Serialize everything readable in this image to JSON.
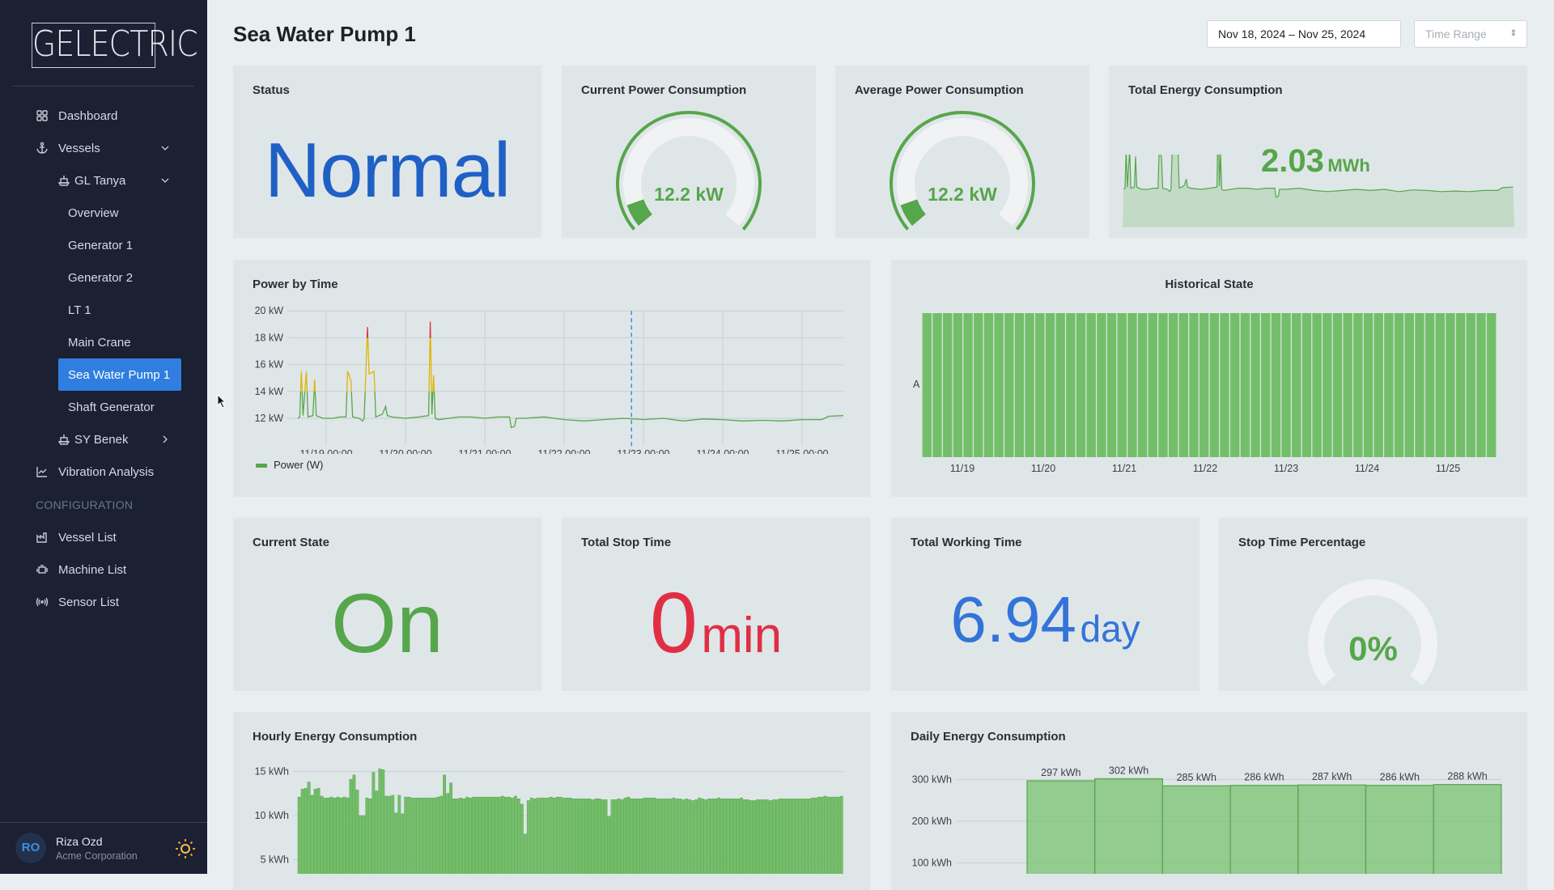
{
  "sidebar": {
    "logo": "GELECTRIC",
    "items": [
      {
        "label": "Dashboard",
        "icon": "dashboard-icon"
      },
      {
        "label": "Vessels",
        "icon": "anchor-icon"
      },
      {
        "label": "GL Tanya",
        "icon": "ship-icon"
      },
      {
        "label": "Overview"
      },
      {
        "label": "Generator 1"
      },
      {
        "label": "Generator 2"
      },
      {
        "label": "LT 1"
      },
      {
        "label": "Main Crane"
      },
      {
        "label": "Sea Water Pump 1",
        "active": true
      },
      {
        "label": "Shaft Generator"
      },
      {
        "label": "SY Benek",
        "icon": "ship-icon"
      },
      {
        "label": "Vibration Analysis",
        "icon": "line-chart-icon"
      }
    ],
    "section": "CONFIGURATION",
    "config_items": [
      {
        "label": "Vessel List",
        "icon": "factory-icon"
      },
      {
        "label": "Machine List",
        "icon": "engine-icon"
      },
      {
        "label": "Sensor List",
        "icon": "sensor-icon"
      }
    ],
    "user": {
      "initials": "RO",
      "name": "Riza Ozd",
      "org": "Acme Corporation"
    }
  },
  "header": {
    "title": "Sea Water Pump 1",
    "date_range": "Nov 18, 2024 – Nov 25, 2024",
    "time_range_placeholder": "Time Range"
  },
  "status": {
    "title": "Status",
    "value": "Normal",
    "color": "#1f60c4"
  },
  "current_power": {
    "title": "Current Power Consumption",
    "value": "12.2 kW",
    "fill_fraction": 0.08
  },
  "average_power": {
    "title": "Average Power Consumption",
    "value": "12.2 kW",
    "fill_fraction": 0.08
  },
  "total_energy": {
    "title": "Total Energy Consumption",
    "value": "2.03",
    "unit": "MWh"
  },
  "current_state": {
    "title": "Current State",
    "value": "On",
    "color": "#56a64b"
  },
  "total_stop": {
    "title": "Total Stop Time",
    "value": "0",
    "unit": "min",
    "color": "#e02f44"
  },
  "total_working": {
    "title": "Total Working Time",
    "value": "6.94",
    "unit": "day",
    "color": "#3274d9"
  },
  "stop_pct": {
    "title": "Stop Time Percentage",
    "value": "0%",
    "fill_fraction": 0
  },
  "chart_data": [
    {
      "id": "power",
      "type": "line",
      "title": "Power by Time",
      "legend": "Power (W)",
      "x_unit": "hours from 11/19 00:00",
      "xlim": [
        -9,
        157
      ],
      "ylim": [
        10,
        20
      ],
      "yticks": [
        {
          "v": 20,
          "l": "20 kW"
        },
        {
          "v": 18,
          "l": "18 kW"
        },
        {
          "v": 16,
          "l": "16 kW"
        },
        {
          "v": 14,
          "l": "14 kW"
        },
        {
          "v": 12,
          "l": "12 kW"
        }
      ],
      "xticks": [
        {
          "v": 0,
          "l": "11/19 00:00"
        },
        {
          "v": 24,
          "l": "11/20 00:00"
        },
        {
          "v": 48,
          "l": "11/21 00:00"
        },
        {
          "v": 72,
          "l": "11/22 00:00"
        },
        {
          "v": 96,
          "l": "11/23 00:00"
        },
        {
          "v": 120,
          "l": "11/24 00:00"
        },
        {
          "v": 144,
          "l": "11/25 00:00"
        }
      ],
      "thresholds": {
        "warn": 14,
        "crit": 18
      },
      "cursor_x": 92.4,
      "points": [
        [
          -8.6,
          12.0
        ],
        [
          -8,
          12.1
        ],
        [
          -7.5,
          15.5
        ],
        [
          -7,
          12.2
        ],
        [
          -6,
          15.5
        ],
        [
          -5.5,
          12.1
        ],
        [
          -4,
          12.2
        ],
        [
          -3.5,
          14.9
        ],
        [
          -3,
          12.2
        ],
        [
          -1,
          12.0
        ],
        [
          0,
          12.0
        ],
        [
          2,
          12.0
        ],
        [
          4,
          12.1
        ],
        [
          6,
          12.1
        ],
        [
          6.5,
          15.5
        ],
        [
          7.5,
          14.8
        ],
        [
          8,
          12.1
        ],
        [
          10,
          12.0
        ],
        [
          11,
          11.8
        ],
        [
          11.5,
          12.0
        ],
        [
          12,
          15.4
        ],
        [
          12.5,
          18.8
        ],
        [
          13,
          15.3
        ],
        [
          14.5,
          15.5
        ],
        [
          15,
          12.1
        ],
        [
          17,
          12.3
        ],
        [
          18,
          12.9
        ],
        [
          18.5,
          12.2
        ],
        [
          20,
          12.1
        ],
        [
          24,
          12.0
        ],
        [
          28,
          12.1
        ],
        [
          31,
          12.2
        ],
        [
          31.5,
          19.2
        ],
        [
          32,
          12.3
        ],
        [
          32.5,
          15.2
        ],
        [
          33,
          12.0
        ],
        [
          34,
          11.9
        ],
        [
          40,
          12.1
        ],
        [
          44,
          12.1
        ],
        [
          48,
          12.0
        ],
        [
          52,
          12.1
        ],
        [
          55.5,
          12.1
        ],
        [
          56,
          11.3
        ],
        [
          57,
          11.4
        ],
        [
          57.5,
          12.0
        ],
        [
          60,
          12.0
        ],
        [
          66,
          12.1
        ],
        [
          72,
          11.9
        ],
        [
          78,
          11.8
        ],
        [
          84,
          11.9
        ],
        [
          90,
          12.0
        ],
        [
          96,
          11.9
        ],
        [
          102,
          12.0
        ],
        [
          108,
          11.8
        ],
        [
          114,
          11.95
        ],
        [
          120,
          11.9
        ],
        [
          126,
          11.8
        ],
        [
          132,
          11.85
        ],
        [
          138,
          11.8
        ],
        [
          144,
          11.9
        ],
        [
          150,
          11.9
        ],
        [
          152,
          12.15
        ],
        [
          156.5,
          12.2
        ]
      ]
    },
    {
      "id": "historical",
      "type": "bar",
      "title": "Historical State",
      "y_category": "A",
      "state": "On",
      "segments": 56,
      "color": "#73bf69",
      "xticks": [
        "11/19",
        "11/20",
        "11/21",
        "11/22",
        "11/23",
        "11/24",
        "11/25"
      ]
    },
    {
      "id": "hourly",
      "type": "bar",
      "title": "Hourly Energy Consumption",
      "ylim": [
        0,
        17
      ],
      "yticks": [
        {
          "v": 15,
          "l": "15 kWh"
        },
        {
          "v": 10,
          "l": "10 kWh"
        },
        {
          "v": 5,
          "l": "5 kWh"
        }
      ],
      "values": [
        12.1,
        13.0,
        13.1,
        13.8,
        12.3,
        13.0,
        13.1,
        12.2,
        12.0,
        12.0,
        12.1,
        12.0,
        12.1,
        12.0,
        12.1,
        12.0,
        14.1,
        14.6,
        12.9,
        10.0,
        10.0,
        12.0,
        11.9,
        14.9,
        12.8,
        15.3,
        15.2,
        12.2,
        12.2,
        12.3,
        10.3,
        12.3,
        10.2,
        12.1,
        12.1,
        12.0,
        12.0,
        12.0,
        12.0,
        12.0,
        12.0,
        12.0,
        12.0,
        12.1,
        12.2,
        14.6,
        12.5,
        13.7,
        11.9,
        11.9,
        12.0,
        11.9,
        12.1,
        12.0,
        12.1,
        12.1,
        12.1,
        12.1,
        12.1,
        12.1,
        12.1,
        12.1,
        12.1,
        12.2,
        12.1,
        12.1,
        12.0,
        12.2,
        11.9,
        11.3,
        7.9,
        11.7,
        12.0,
        11.9,
        12.0,
        12.0,
        12.0,
        12.0,
        12.1,
        12.0,
        12.1,
        12.1,
        12.0,
        12.0,
        12.0,
        11.9,
        11.9,
        11.9,
        11.9,
        11.9,
        11.9,
        11.8,
        11.9,
        11.9,
        11.8,
        11.8,
        9.9,
        11.8,
        11.8,
        11.9,
        11.8,
        12.0,
        12.1,
        11.9,
        11.9,
        11.9,
        11.9,
        12.0,
        12.0,
        12.0,
        12.0,
        11.9,
        11.9,
        11.9,
        11.9,
        11.9,
        12.0,
        11.9,
        11.9,
        11.8,
        11.9,
        11.8,
        11.7,
        11.8,
        12.0,
        11.9,
        11.8,
        11.9,
        11.9,
        11.9,
        12.0,
        11.9,
        11.9,
        11.9,
        11.9,
        11.9,
        11.9,
        12.0,
        11.8,
        11.8,
        11.7,
        11.7,
        11.8,
        11.8,
        11.8,
        11.8,
        11.7,
        11.8,
        11.8,
        11.9,
        11.9,
        11.9,
        11.9,
        11.9,
        11.9,
        11.9,
        11.9,
        11.9,
        11.9,
        12.0,
        12.0,
        12.1,
        12.1,
        12.2,
        12.1,
        12.1,
        12.1,
        12.1,
        12.2
      ]
    },
    {
      "id": "daily",
      "type": "bar",
      "title": "Daily Energy Consumption",
      "ylim": [
        0,
        330
      ],
      "yticks": [
        {
          "v": 300,
          "l": "300 kWh"
        },
        {
          "v": 200,
          "l": "200 kWh"
        },
        {
          "v": 100,
          "l": "100 kWh"
        }
      ],
      "values": [
        297,
        302,
        285,
        286,
        287,
        286,
        288
      ],
      "labels": [
        "297 kWh",
        "302 kWh",
        "285 kWh",
        "286 kWh",
        "287 kWh",
        "286 kWh",
        "288 kWh"
      ]
    }
  ]
}
